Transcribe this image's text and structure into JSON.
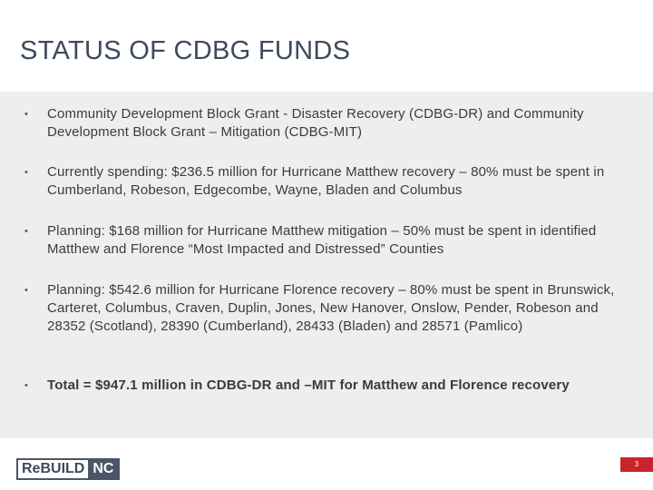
{
  "slide": {
    "title": "STATUS OF CDBG FUNDS",
    "bullet_symbol": "•",
    "bullets": [
      {
        "text": "Community Development Block Grant - Disaster Recovery (CDBG-DR) and Community Development Block Grant – Mitigation (CDBG-MIT)"
      },
      {
        "text": "Currently spending: $236.5 million for Hurricane Matthew recovery – 80% must be spent in Cumberland, Robeson, Edgecombe, Wayne, Bladen and Columbus"
      },
      {
        "text": "Planning: $168 million for Hurricane Matthew mitigation – 50% must be spent in identified Matthew and Florence “Most Impacted and Distressed” Counties"
      },
      {
        "text": "Planning: $542.6 million for Hurricane Florence recovery – 80% must be spent in Brunswick, Carteret, Columbus, Craven, Duplin, Jones, New Hanover, Onslow, Pender, Robeson and 28352 (Scotland), 28390 (Cumberland), 28433 (Bladen) and 28571 (Pamlico)"
      },
      {
        "text": "Total = $947.1 million in CDBG-DR and –MIT for Matthew and Florence recovery"
      }
    ],
    "page_number": "3"
  },
  "logo": {
    "part1": "ReBUILD",
    "part2": "NC"
  },
  "colors": {
    "title": "#3d4a5c",
    "panel": "#eeeeee",
    "page_badge": "#c8242b",
    "logo_dark": "#4a5566"
  }
}
